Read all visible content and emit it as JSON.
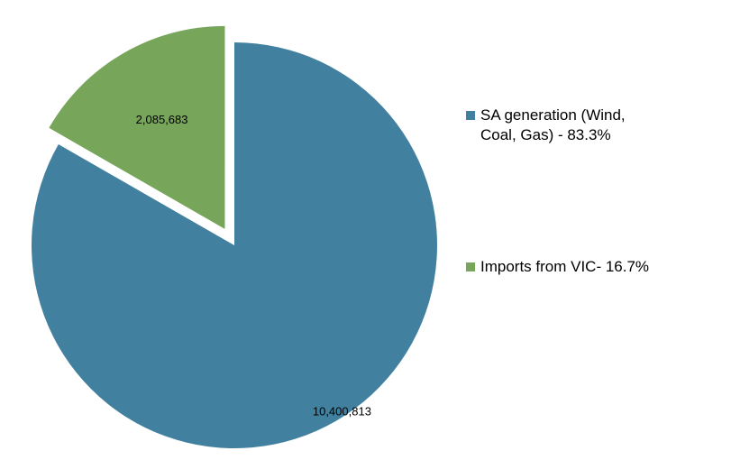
{
  "chart_data": {
    "type": "pie",
    "title": "",
    "slices": [
      {
        "name": "SA generation (Wind, Coal, Gas)  - 83.3%",
        "value": 10400813,
        "label": "10,400,813",
        "color": "#41809f",
        "exploded": false
      },
      {
        "name": "Imports from VIC- 16.7%",
        "value": 2085683,
        "label": "2,085,683",
        "color": "#77a55a",
        "exploded": true
      }
    ],
    "legend": {
      "placement": "right",
      "items": [
        {
          "text": "SA generation (Wind,\nCoal, Gas)  - 83.3%",
          "color": "#41809f"
        },
        {
          "text": "Imports from VIC- 16.7%",
          "color": "#77a55a"
        }
      ]
    }
  }
}
